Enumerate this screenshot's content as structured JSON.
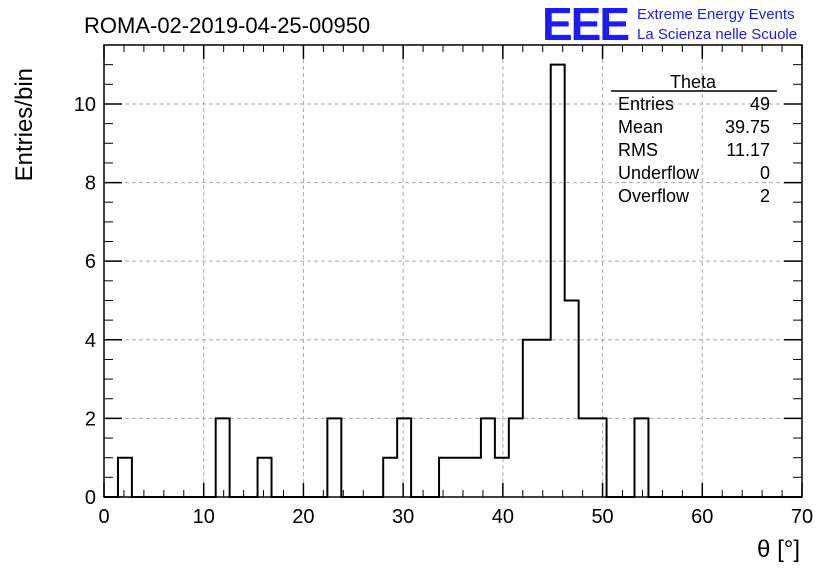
{
  "header": {
    "run_title": "ROMA-02-2019-04-25-00950",
    "logo": "EEE",
    "logo_line1": "Extreme Energy Events",
    "logo_line2": "La Scienza nelle Scuole"
  },
  "stats_box": {
    "title": "Theta",
    "rows": [
      {
        "label": "Entries",
        "value": "49"
      },
      {
        "label": "Mean",
        "value": "39.75"
      },
      {
        "label": "RMS",
        "value": "11.17"
      },
      {
        "label": "Underflow",
        "value": "0"
      },
      {
        "label": "Overflow",
        "value": "2"
      }
    ]
  },
  "chart_data": {
    "type": "bar",
    "style": "histogram-step",
    "xlabel": "θ [°]",
    "ylabel": "Entries/bin",
    "xlim": [
      0,
      70
    ],
    "ylim": [
      0,
      11.5
    ],
    "bin_width": 1.4,
    "xticks": [
      0,
      10,
      20,
      30,
      40,
      50,
      60,
      70
    ],
    "yticks": [
      0,
      2,
      4,
      6,
      8,
      10
    ],
    "grid": true,
    "bins": [
      {
        "x0": 1.4,
        "value": 1
      },
      {
        "x0": 11.2,
        "value": 2
      },
      {
        "x0": 15.4,
        "value": 1
      },
      {
        "x0": 22.4,
        "value": 2
      },
      {
        "x0": 28.0,
        "value": 1
      },
      {
        "x0": 29.4,
        "value": 2
      },
      {
        "x0": 33.6,
        "value": 1
      },
      {
        "x0": 35.0,
        "value": 1
      },
      {
        "x0": 36.4,
        "value": 1
      },
      {
        "x0": 37.8,
        "value": 2
      },
      {
        "x0": 39.2,
        "value": 1
      },
      {
        "x0": 40.6,
        "value": 2
      },
      {
        "x0": 42.0,
        "value": 4
      },
      {
        "x0": 43.4,
        "value": 4
      },
      {
        "x0": 44.8,
        "value": 11
      },
      {
        "x0": 46.2,
        "value": 5
      },
      {
        "x0": 47.6,
        "value": 2
      },
      {
        "x0": 49.0,
        "value": 2
      },
      {
        "x0": 53.2,
        "value": 2
      }
    ]
  }
}
